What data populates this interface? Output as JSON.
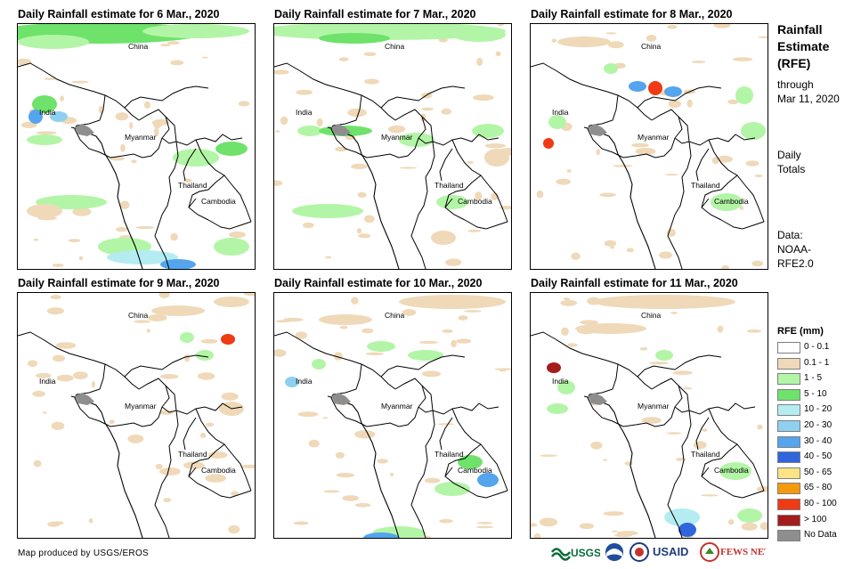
{
  "panels": [
    {
      "title": "Daily Rainfall estimate for 6 Mar., 2020"
    },
    {
      "title": "Daily Rainfall estimate for 7 Mar., 2020"
    },
    {
      "title": "Daily Rainfall estimate for 8 Mar., 2020"
    },
    {
      "title": "Daily Rainfall estimate for 9 Mar., 2020"
    },
    {
      "title": "Daily Rainfall estimate for 10 Mar., 2020"
    },
    {
      "title": "Daily Rainfall estimate for 11 Mar., 2020"
    }
  ],
  "map_labels": {
    "china": "China",
    "india": "India",
    "myanmar": "Myanmar",
    "thailand": "Thailand",
    "cambodia": "Cambodia"
  },
  "side": {
    "title_line1": "Rainfall",
    "title_line2": "Estimate",
    "title_line3": "(RFE)",
    "through": "through",
    "date": "Mar 11, 2020",
    "daily": "Daily",
    "totals": "Totals",
    "data_label": "Data:",
    "data_src1": "NOAA-",
    "data_src2": "RFE2.0"
  },
  "legend": {
    "title": "RFE (mm)",
    "items": [
      {
        "label": "0 - 0.1",
        "color": "#ffffff"
      },
      {
        "label": "0.1 - 1",
        "color": "#efd9b8"
      },
      {
        "label": "1 - 5",
        "color": "#b3f5a6"
      },
      {
        "label": "5 - 10",
        "color": "#6ee26b"
      },
      {
        "label": "10 - 20",
        "color": "#b4ecf2"
      },
      {
        "label": "20 - 30",
        "color": "#8fd0f0"
      },
      {
        "label": "30 - 40",
        "color": "#55a4ee"
      },
      {
        "label": "40 - 50",
        "color": "#2f66dc"
      },
      {
        "label": "50 - 65",
        "color": "#fbe386"
      },
      {
        "label": "65 - 80",
        "color": "#f59a0d"
      },
      {
        "label": "80 - 100",
        "color": "#ef3a14"
      },
      {
        "label": "> 100",
        "color": "#a51c1c"
      },
      {
        "label": "No Data",
        "color": "#8e8e8e"
      }
    ]
  },
  "credit": "Map produced by USGS/EROS",
  "logos": {
    "usgs": "USGS",
    "usaid": "USAID",
    "fewsnet": "FEWS NET"
  }
}
